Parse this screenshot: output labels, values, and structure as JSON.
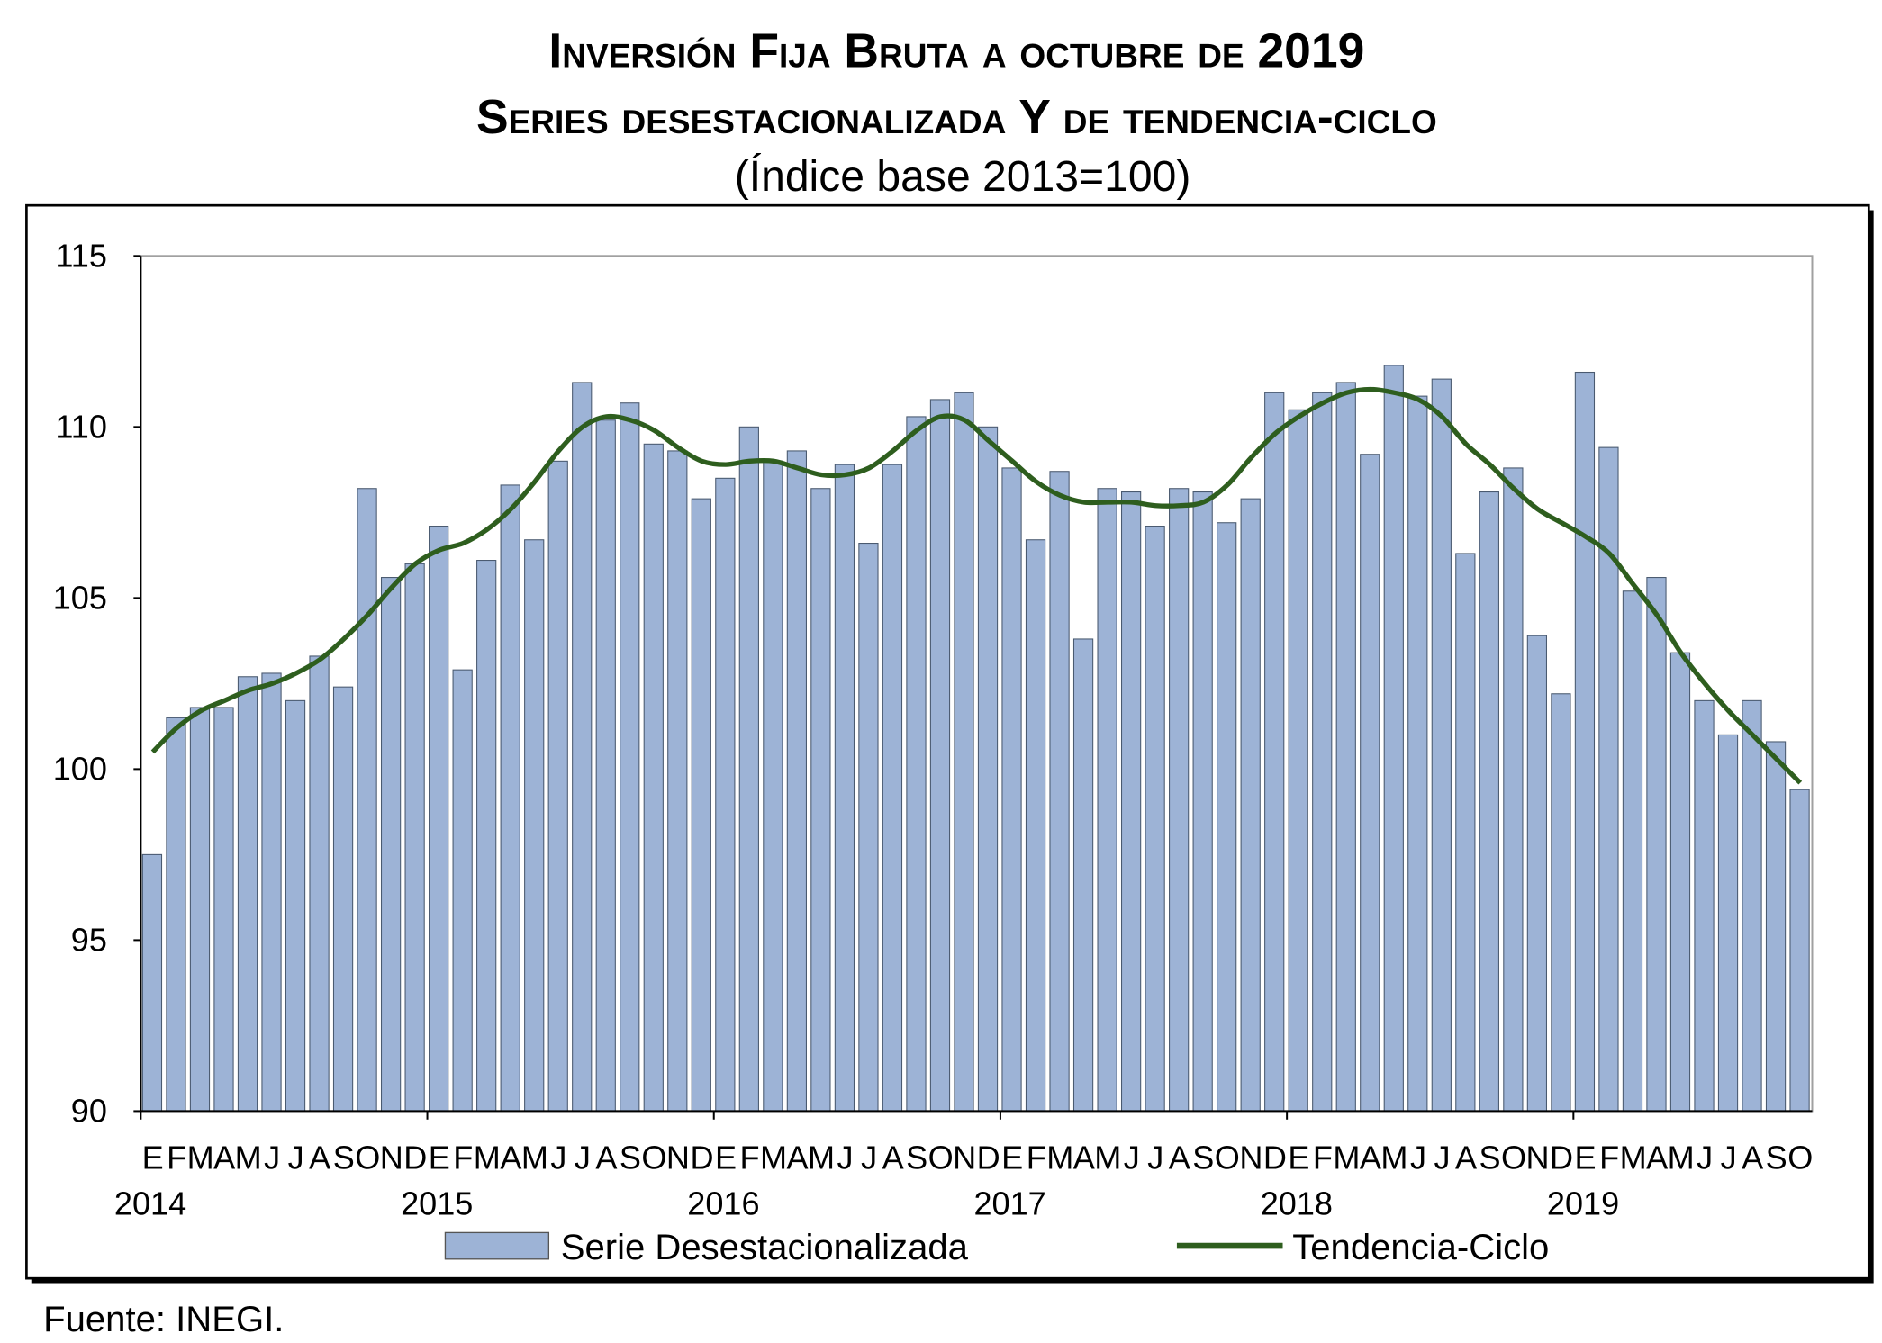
{
  "chart_data": {
    "type": "bar",
    "title": "Inversión Fija Bruta a octubre de 2019",
    "title2": "Series desestacionalizada Y de tendencia-ciclo",
    "subtitle": "(Índice base 2013=100)",
    "ylim": [
      90,
      115
    ],
    "yticks": [
      "90",
      "95",
      "100",
      "105",
      "110",
      "115"
    ],
    "month_labels": [
      "E",
      "F",
      "M",
      "A",
      "M",
      "J",
      "J",
      "A",
      "S",
      "O",
      "N",
      "D"
    ],
    "years": [
      "2014",
      "2015",
      "2016",
      "2017",
      "2018",
      "2019"
    ],
    "series": [
      {
        "name": "Serie Desestacionalizada",
        "kind": "bar",
        "color": "#9db3d6",
        "values": [
          97.5,
          101.5,
          101.8,
          101.8,
          102.7,
          102.8,
          102.0,
          103.3,
          102.4,
          108.2,
          105.6,
          106.0,
          107.1,
          102.9,
          106.1,
          108.3,
          106.7,
          109.0,
          111.3,
          110.2,
          110.7,
          109.5,
          109.3,
          107.9,
          108.5,
          110.0,
          109.0,
          109.3,
          108.2,
          108.9,
          106.6,
          108.9,
          110.3,
          110.8,
          111.0,
          110.0,
          108.8,
          106.7,
          108.7,
          103.8,
          108.2,
          108.1,
          107.1,
          108.2,
          108.1,
          107.2,
          107.9,
          111.0,
          110.5,
          111.0,
          111.3,
          109.2,
          111.8,
          110.9,
          111.4,
          106.3,
          108.1,
          108.8,
          103.9,
          102.2,
          111.6,
          109.4,
          105.2,
          105.6,
          103.4,
          102.0,
          101.0,
          102.0,
          100.8,
          99.4
        ]
      },
      {
        "name": "Tendencia-Ciclo",
        "kind": "line",
        "color": "#2e5e1e",
        "values": [
          100.5,
          101.2,
          101.7,
          102.0,
          102.3,
          102.5,
          102.8,
          103.2,
          103.8,
          104.5,
          105.3,
          106.0,
          106.4,
          106.6,
          107.0,
          107.6,
          108.4,
          109.3,
          110.0,
          110.3,
          110.2,
          109.9,
          109.4,
          109.0,
          108.9,
          109.0,
          109.0,
          108.8,
          108.6,
          108.6,
          108.8,
          109.3,
          109.9,
          110.3,
          110.2,
          109.6,
          109.0,
          108.4,
          108.0,
          107.8,
          107.8,
          107.8,
          107.7,
          107.7,
          107.8,
          108.3,
          109.1,
          109.8,
          110.3,
          110.7,
          111.0,
          111.1,
          111.0,
          110.8,
          110.3,
          109.5,
          108.9,
          108.2,
          107.6,
          107.2,
          106.8,
          106.3,
          105.4,
          104.5,
          103.4,
          102.5,
          101.7,
          101.0,
          100.3,
          99.6
        ]
      }
    ],
    "legend": "bottom"
  },
  "source": "Fuente: INEGI."
}
